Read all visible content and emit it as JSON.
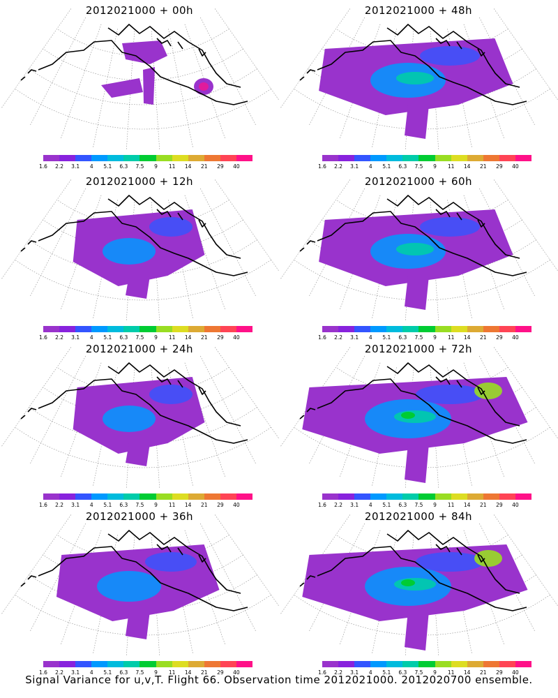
{
  "panels": [
    {
      "title": "2012021000 + 00h",
      "intensity": 0
    },
    {
      "title": "2012021000 + 48h",
      "intensity": 3
    },
    {
      "title": "2012021000 + 12h",
      "intensity": 1
    },
    {
      "title": "2012021000 + 60h",
      "intensity": 3
    },
    {
      "title": "2012021000 + 24h",
      "intensity": 1
    },
    {
      "title": "2012021000 + 72h",
      "intensity": 4
    },
    {
      "title": "2012021000 + 36h",
      "intensity": 2
    },
    {
      "title": "2012021000 + 84h",
      "intensity": 4
    }
  ],
  "colorbar": {
    "colors": [
      "#9933cc",
      "#8822dd",
      "#3355ff",
      "#0099ff",
      "#00bbdd",
      "#00ccaa",
      "#00cc33",
      "#99dd22",
      "#dddd22",
      "#ddaa33",
      "#ee7733",
      "#ff4455",
      "#ff1188"
    ],
    "labels": [
      "1.6",
      "2.2",
      "3.1",
      "4",
      "5.1",
      "6.3",
      "7.5",
      "9",
      "11",
      "14",
      "21",
      "29",
      "40"
    ]
  },
  "footer": "Signal Variance for u,v,T. Flight 66. Observation time 2012021000. 2012020700 ensemble."
}
